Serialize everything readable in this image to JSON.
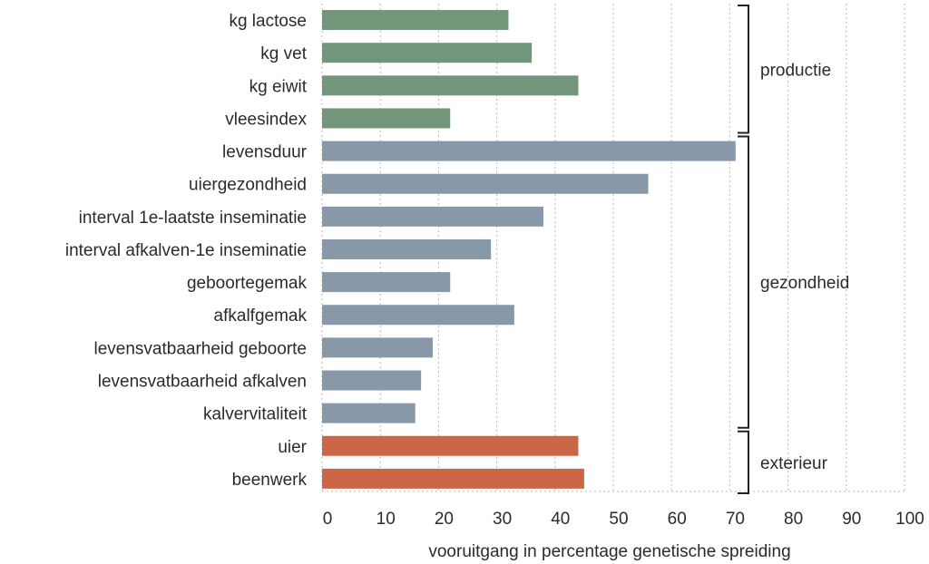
{
  "chart_data": {
    "type": "bar",
    "orientation": "horizontal",
    "xlabel": "vooruitgang in percentage genetische spreiding",
    "xlim": [
      0,
      100
    ],
    "xticks": [
      0,
      10,
      20,
      30,
      40,
      50,
      60,
      70,
      80,
      90,
      100
    ],
    "grid": true,
    "categories": [
      "kg lactose",
      "kg vet",
      "kg eiwit",
      "vleesindex",
      "levensduur",
      "uiergezondheid",
      "interval 1e-laatste inseminatie",
      "interval afkalven-1e inseminatie",
      "geboortegemak",
      "afkalfgemak",
      "levensvatbaarheid geboorte",
      "levensvatbaarheid afkalven",
      "kalvervitaliteit",
      "uier",
      "beenwerk"
    ],
    "values": [
      32,
      36,
      44,
      22,
      71,
      56,
      38,
      29,
      22,
      33,
      19,
      17,
      16,
      44,
      45
    ],
    "groups": [
      {
        "label": "productie",
        "start": 0,
        "end": 3,
        "color": "#72967a"
      },
      {
        "label": "gezondheid",
        "start": 4,
        "end": 12,
        "color": "#8799a9"
      },
      {
        "label": "exterieur",
        "start": 13,
        "end": 14,
        "color": "#cb6747"
      }
    ]
  }
}
